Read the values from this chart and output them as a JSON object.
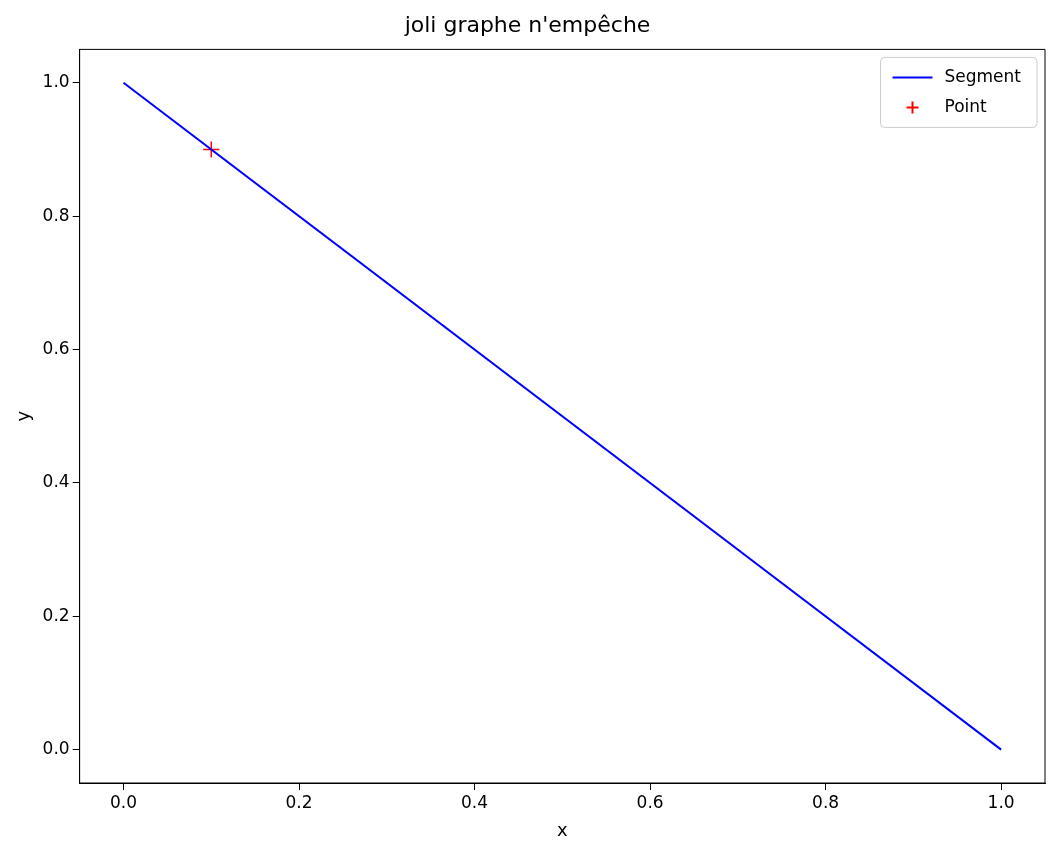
{
  "chart_data": {
    "type": "line",
    "title": "joli graphe n'empêche",
    "xlabel": "x",
    "ylabel": "y",
    "xlim": [
      -0.05,
      1.05
    ],
    "ylim": [
      -0.05,
      1.05
    ],
    "xticks": [
      {
        "value": 0,
        "label": "0.0"
      },
      {
        "value": 0.2,
        "label": "0.2"
      },
      {
        "value": 0.4,
        "label": "0.4"
      },
      {
        "value": 0.6,
        "label": "0.6"
      },
      {
        "value": 0.8,
        "label": "0.8"
      },
      {
        "value": 1,
        "label": "1.0"
      }
    ],
    "yticks": [
      {
        "value": 0,
        "label": "0.0"
      },
      {
        "value": 0.2,
        "label": "0.2"
      },
      {
        "value": 0.4,
        "label": "0.4"
      },
      {
        "value": 0.6,
        "label": "0.6"
      },
      {
        "value": 0.8,
        "label": "0.8"
      },
      {
        "value": 1,
        "label": "1.0"
      }
    ],
    "grid": false,
    "legend": "top right",
    "line_style": "solid",
    "series": [
      {
        "name": "Segment",
        "color": "#0000ff",
        "x": [
          0,
          1
        ],
        "values": [
          1,
          0
        ],
        "marker": "none"
      },
      {
        "name": "Point",
        "type": "scatter",
        "color": "#ff0000",
        "x": [
          0.1
        ],
        "values": [
          0.9
        ],
        "marker": "cross"
      }
    ]
  }
}
